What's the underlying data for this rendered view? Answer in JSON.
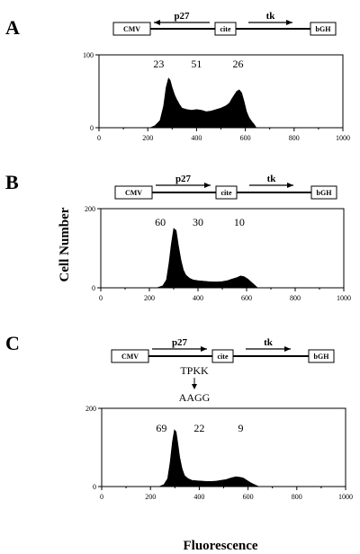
{
  "figure": {
    "ylabel": "Cell Number",
    "xlabel": "Fluorescence"
  },
  "panels": [
    {
      "letter": "A",
      "construct": {
        "elements": [
          "CMV",
          "cite",
          "bGH"
        ],
        "genes": [
          {
            "name": "p27",
            "direction": "reverse"
          },
          {
            "name": "tk",
            "direction": "forward"
          }
        ]
      },
      "mutation": null
    },
    {
      "letter": "B",
      "construct": {
        "elements": [
          "CMV",
          "cite",
          "bGH"
        ],
        "genes": [
          {
            "name": "p27",
            "direction": "forward"
          },
          {
            "name": "tk",
            "direction": "forward"
          }
        ]
      },
      "mutation": null
    },
    {
      "letter": "C",
      "construct": {
        "elements": [
          "CMV",
          "cite",
          "bGH"
        ],
        "genes": [
          {
            "name": "p27",
            "direction": "forward"
          },
          {
            "name": "tk",
            "direction": "forward"
          }
        ]
      },
      "mutation": {
        "from": "TPKK",
        "to": "AAGG"
      }
    }
  ],
  "chart_data": [
    {
      "type": "area",
      "xlim": [
        0,
        1000
      ],
      "ylim": [
        0,
        100
      ],
      "xticks": [
        0,
        200,
        400,
        600,
        800,
        1000
      ],
      "yticks": [
        0,
        100
      ],
      "annotations": [
        "23",
        "51",
        "26"
      ],
      "fill_color": "#000000",
      "x": [
        210,
        230,
        250,
        265,
        275,
        285,
        292,
        300,
        310,
        320,
        330,
        340,
        360,
        380,
        400,
        420,
        440,
        460,
        480,
        500,
        520,
        535,
        545,
        555,
        565,
        575,
        585,
        595,
        605,
        615,
        625,
        635,
        645
      ],
      "y": [
        0,
        3,
        10,
        30,
        55,
        68,
        65,
        55,
        45,
        38,
        32,
        27,
        25,
        24,
        25,
        24,
        22,
        23,
        25,
        27,
        30,
        34,
        40,
        45,
        50,
        52,
        48,
        36,
        22,
        14,
        9,
        5,
        0
      ]
    },
    {
      "type": "area",
      "xlim": [
        0,
        1000
      ],
      "ylim": [
        0,
        200
      ],
      "xticks": [
        0,
        200,
        400,
        600,
        800,
        1000
      ],
      "yticks": [
        0,
        200
      ],
      "annotations": [
        "60",
        "30",
        "10"
      ],
      "fill_color": "#000000",
      "x": [
        230,
        255,
        270,
        280,
        290,
        300,
        310,
        320,
        330,
        340,
        350,
        365,
        380,
        400,
        420,
        440,
        460,
        480,
        500,
        520,
        540,
        560,
        575,
        590,
        605,
        620,
        635,
        645
      ],
      "y": [
        0,
        5,
        20,
        60,
        110,
        150,
        145,
        105,
        70,
        45,
        32,
        24,
        20,
        18,
        17,
        16,
        15,
        15,
        16,
        18,
        22,
        26,
        30,
        28,
        22,
        14,
        6,
        0
      ]
    },
    {
      "type": "area",
      "xlim": [
        0,
        1000
      ],
      "ylim": [
        0,
        200
      ],
      "xticks": [
        0,
        200,
        400,
        600,
        800,
        1000
      ],
      "yticks": [
        0,
        200
      ],
      "annotations": [
        "69",
        "22",
        "9"
      ],
      "fill_color": "#000000",
      "x": [
        235,
        255,
        270,
        280,
        290,
        298,
        305,
        312,
        320,
        330,
        340,
        355,
        370,
        390,
        410,
        430,
        450,
        470,
        490,
        510,
        530,
        550,
        565,
        580,
        595,
        610,
        630,
        645
      ],
      "y": [
        0,
        5,
        20,
        60,
        115,
        145,
        140,
        110,
        75,
        45,
        28,
        20,
        16,
        15,
        14,
        13,
        13,
        14,
        16,
        18,
        22,
        25,
        24,
        22,
        16,
        10,
        4,
        0
      ]
    }
  ]
}
